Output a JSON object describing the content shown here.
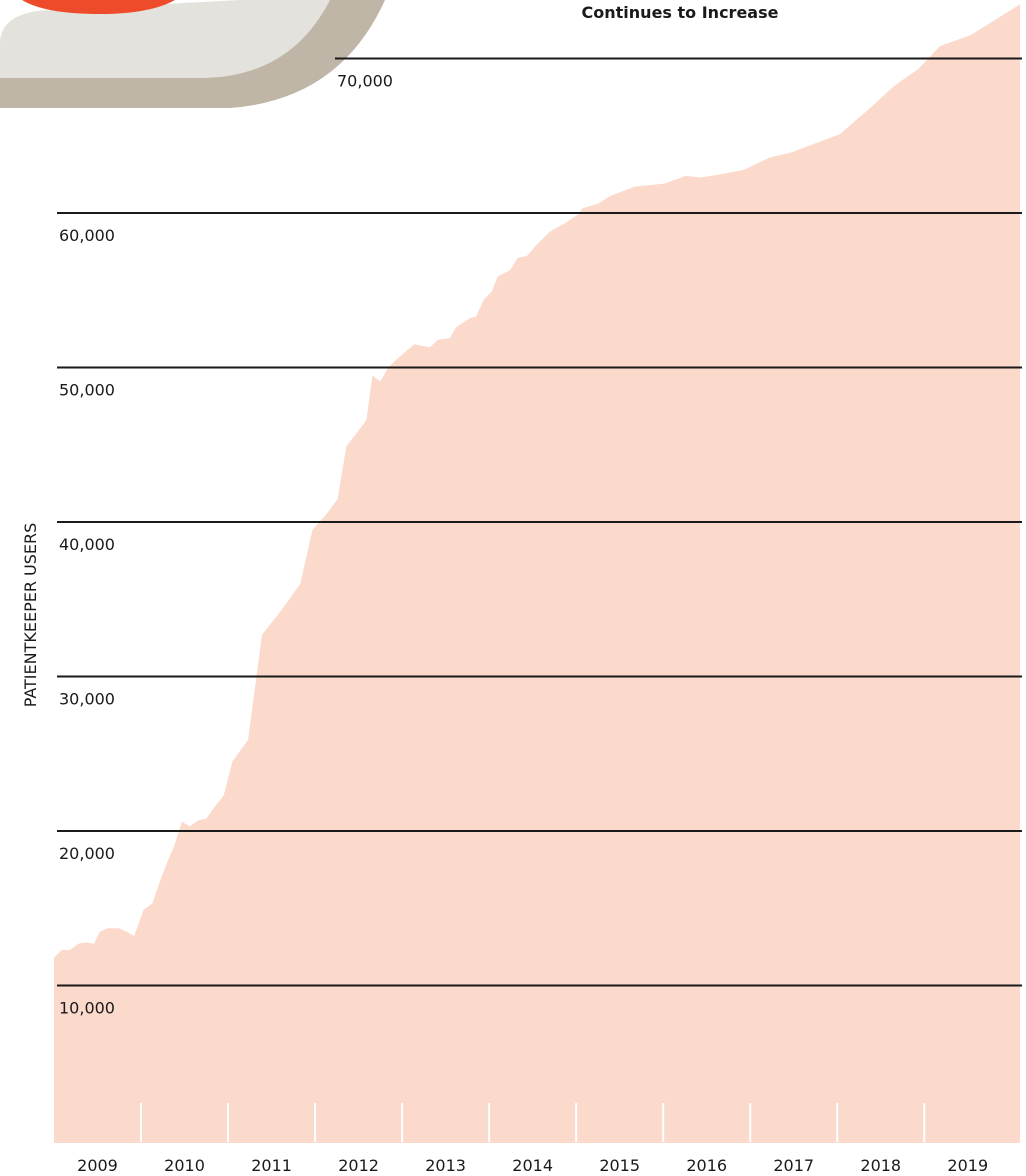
{
  "chart_data": {
    "type": "area",
    "title": "Continues to Increase",
    "y_label": "PATIENTKEEPER USERS",
    "color": "#fbd9cb",
    "title_color": "#ee5a36",
    "x": [
      2009.0,
      2009.09,
      2009.18,
      2009.28,
      2009.37,
      2009.46,
      2009.53,
      2009.62,
      2009.74,
      2009.83,
      2009.92,
      2010.03,
      2010.13,
      2010.22,
      2010.31,
      2010.38,
      2010.47,
      2010.56,
      2010.66,
      2010.75,
      2010.84,
      2010.95,
      2011.05,
      2011.14,
      2011.23,
      2011.39,
      2011.6,
      2011.83,
      2011.97,
      2012.13,
      2012.26,
      2012.36,
      2012.47,
      2012.59,
      2012.66,
      2012.75,
      2012.84,
      2012.95,
      2013.14,
      2013.32,
      2013.41,
      2013.55,
      2013.62,
      2013.78,
      2013.85,
      2013.94,
      2014.03,
      2014.1,
      2014.24,
      2014.33,
      2014.43,
      2014.54,
      2014.7,
      2014.89,
      2015.02,
      2015.07,
      2015.25,
      2015.39,
      2015.67,
      2016.01,
      2016.26,
      2016.43,
      2016.66,
      2016.93,
      2017.23,
      2017.46,
      2018.03,
      2018.38,
      2018.61,
      2018.72,
      2018.93,
      2019.18,
      2019.53,
      2020.1
    ],
    "values": [
      11800,
      12300,
      12300,
      12700,
      12800,
      12700,
      13500,
      13700,
      13700,
      13500,
      13200,
      14900,
      15300,
      16800,
      18100,
      19000,
      20600,
      20300,
      20700,
      20800,
      21500,
      22300,
      24500,
      25200,
      25900,
      32700,
      34200,
      36000,
      39500,
      40500,
      41500,
      44900,
      45700,
      46600,
      49500,
      49100,
      50000,
      50600,
      51500,
      51300,
      51800,
      51900,
      52600,
      53200,
      53300,
      54400,
      54900,
      55900,
      56300,
      57100,
      57200,
      57900,
      58800,
      59400,
      59900,
      60300,
      60600,
      61100,
      61700,
      61900,
      62400,
      62300,
      62500,
      62800,
      63600,
      63900,
      65100,
      66800,
      68000,
      68500,
      69300,
      70800,
      71500,
      73500
    ],
    "xlim": [
      2009,
      2020.1
    ],
    "xticks": [
      2009,
      2010,
      2011,
      2012,
      2013,
      2014,
      2015,
      2016,
      2017,
      2018,
      2019
    ],
    "ylim": [
      0,
      74000
    ],
    "yticks": [
      {
        "value": 10000,
        "label": "10,000"
      },
      {
        "value": 20000,
        "label": "20,000"
      },
      {
        "value": 30000,
        "label": "30,000"
      },
      {
        "value": 40000,
        "label": "40,000"
      },
      {
        "value": 50000,
        "label": "50,000"
      },
      {
        "value": 60000,
        "label": "60,000"
      },
      {
        "value": 70000,
        "label": "70,000"
      }
    ],
    "grid": true
  }
}
